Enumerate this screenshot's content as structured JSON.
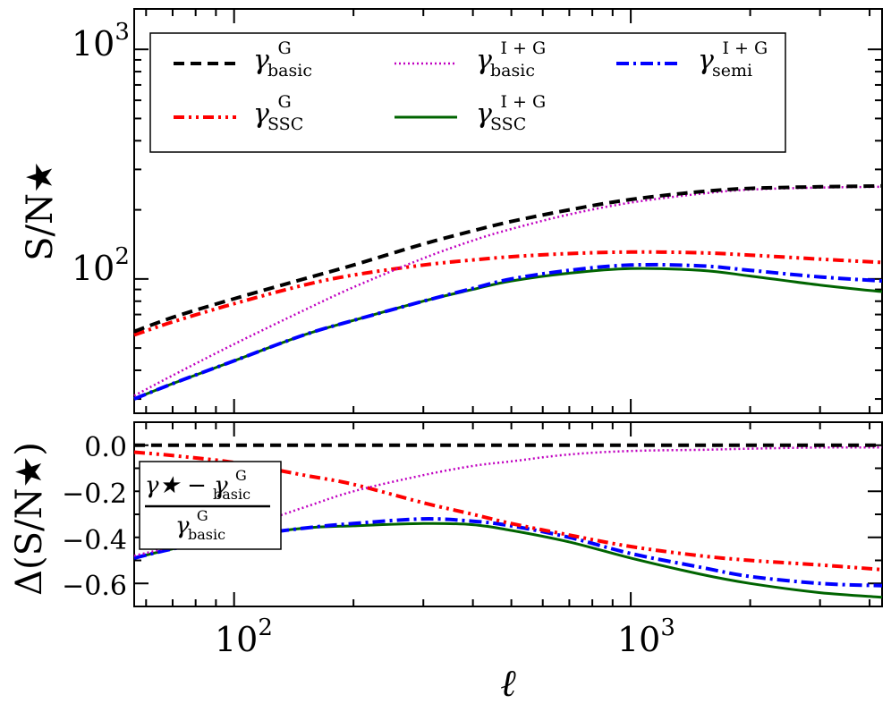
{
  "colors": {
    "gamma_G_basic": "#000000",
    "gamma_G_SSC": "#ff0000",
    "gamma_IG_basic": "#c000c0",
    "gamma_IG_SSC": "#006400",
    "gamma_IG_semi": "#0000ff"
  },
  "chart_data": [
    {
      "type": "line",
      "panel": "top",
      "xscale": "log",
      "yscale": "log",
      "xlim": [
        56,
        4300
      ],
      "ylim": [
        26,
        1500
      ],
      "ylabel": "S/N★",
      "xlabel": "",
      "ytick_labels": [
        "10",
        "10"
      ],
      "ytick_exponents": [
        "3",
        "2"
      ],
      "legend": {
        "placement": "top (inside)",
        "entries": [
          {
            "base": "γ",
            "sup": "G",
            "sub": "basic",
            "series": "gamma_G_basic"
          },
          {
            "base": "γ",
            "sup": "I + G",
            "sub": "basic",
            "series": "gamma_IG_basic"
          },
          {
            "base": "γ",
            "sup": "I + G",
            "sub": "semi",
            "series": "gamma_IG_semi"
          },
          {
            "base": "γ",
            "sup": "G",
            "sub": "SSC",
            "series": "gamma_G_SSC"
          },
          {
            "base": "γ",
            "sup": "I + G",
            "sub": "SSC",
            "series": "gamma_IG_SSC"
          }
        ]
      },
      "x": [
        56,
        70,
        100,
        150,
        200,
        300,
        400,
        500,
        700,
        1000,
        1500,
        2000,
        3000,
        4300
      ],
      "series": [
        {
          "key": "gamma_G_basic",
          "name": "gamma_G_basic",
          "style": "dashed",
          "values": [
            59,
            68,
            82,
            100,
            115,
            142,
            162,
            178,
            200,
            222,
            240,
            248,
            252,
            254
          ]
        },
        {
          "key": "gamma_G_SSC",
          "name": "gamma_G_SSC",
          "style": "dashdotdot",
          "values": [
            57,
            65,
            78,
            94,
            104,
            115,
            121,
            125,
            129,
            131,
            130,
            127,
            122,
            118
          ]
        },
        {
          "key": "gamma_IG_basic",
          "name": "gamma_IG_basic",
          "style": "dotted",
          "values": [
            31,
            38,
            52,
            73,
            92,
            123,
            147,
            165,
            191,
            215,
            235,
            245,
            250,
            252
          ]
        },
        {
          "key": "gamma_IG_semi",
          "name": "gamma_IG_semi",
          "style": "dashdot",
          "values": [
            30,
            35,
            44,
            57,
            66,
            80,
            91,
            100,
            109,
            115,
            114,
            109,
            102,
            98
          ]
        },
        {
          "key": "gamma_IG_SSC",
          "name": "gamma_IG_SSC",
          "style": "solid",
          "values": [
            30,
            35,
            44,
            57,
            66,
            80,
            90,
            98,
            106,
            111,
            109,
            103,
            94,
            88
          ]
        }
      ]
    },
    {
      "type": "line",
      "panel": "bottom",
      "xscale": "log",
      "yscale": "linear",
      "xlim": [
        56,
        4300
      ],
      "ylim": [
        -0.7,
        0.1
      ],
      "ylabel": "Δ(S/N★)",
      "xlabel": "ℓ",
      "yticks": [
        0.0,
        -0.2,
        -0.4,
        -0.6
      ],
      "ytick_labels": [
        "0.0",
        "−0.2",
        "−0.4",
        "−0.6"
      ],
      "xtick_labels": [
        "10",
        "10"
      ],
      "xtick_exponents": [
        "2",
        "3"
      ],
      "annotation": {
        "numerator_base": "γ★ − γ",
        "numerator_sup": "G",
        "numerator_sub": "basic",
        "denominator_base": "γ",
        "denominator_sup": "G",
        "denominator_sub": "basic"
      },
      "x": [
        56,
        70,
        100,
        150,
        200,
        300,
        400,
        500,
        700,
        1000,
        1500,
        2000,
        3000,
        4300
      ],
      "series": [
        {
          "key": "gamma_G_basic",
          "name": "gamma_G_basic",
          "style": "dashed",
          "values": [
            0.0,
            0.0,
            0.0,
            0.0,
            0.0,
            0.0,
            0.0,
            0.0,
            0.0,
            0.0,
            0.0,
            0.0,
            0.0,
            0.0
          ]
        },
        {
          "key": "gamma_G_SSC",
          "name": "gamma_G_SSC",
          "style": "dashdotdot",
          "values": [
            -0.03,
            -0.045,
            -0.075,
            -0.13,
            -0.17,
            -0.25,
            -0.3,
            -0.34,
            -0.39,
            -0.44,
            -0.48,
            -0.5,
            -0.52,
            -0.54
          ]
        },
        {
          "key": "gamma_IG_basic",
          "name": "gamma_IG_basic",
          "style": "dotted",
          "values": [
            -0.48,
            -0.44,
            -0.37,
            -0.27,
            -0.2,
            -0.13,
            -0.09,
            -0.07,
            -0.04,
            -0.025,
            -0.02,
            -0.015,
            -0.01,
            -0.01
          ]
        },
        {
          "key": "gamma_IG_semi",
          "name": "gamma_IG_semi",
          "style": "dashdot",
          "values": [
            -0.49,
            -0.45,
            -0.4,
            -0.36,
            -0.34,
            -0.32,
            -0.33,
            -0.35,
            -0.4,
            -0.47,
            -0.53,
            -0.57,
            -0.6,
            -0.61
          ]
        },
        {
          "key": "gamma_IG_SSC",
          "name": "gamma_IG_SSC",
          "style": "solid",
          "values": [
            -0.49,
            -0.45,
            -0.4,
            -0.36,
            -0.35,
            -0.34,
            -0.345,
            -0.37,
            -0.42,
            -0.49,
            -0.56,
            -0.6,
            -0.64,
            -0.66
          ]
        }
      ]
    }
  ]
}
